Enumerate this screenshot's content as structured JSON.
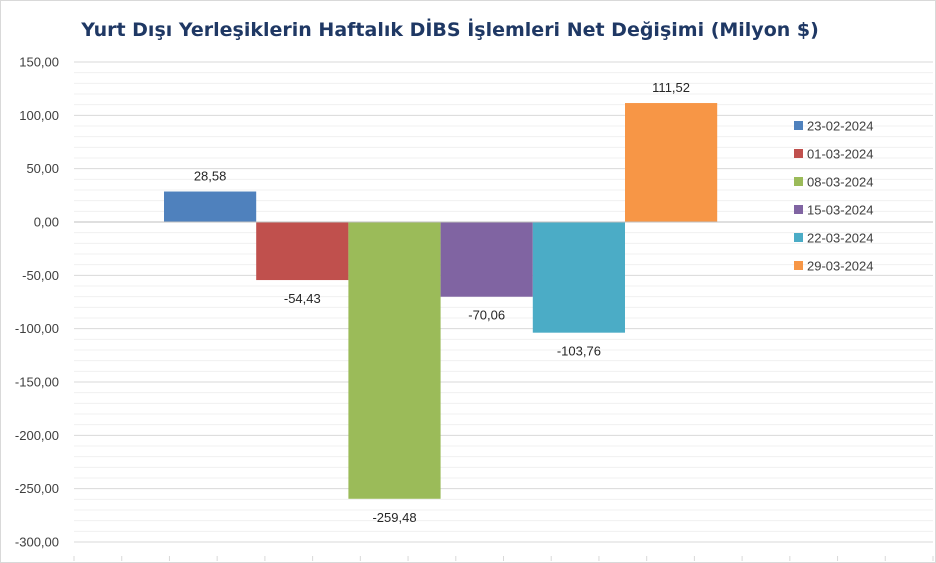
{
  "chart_data": {
    "type": "bar",
    "title": "Yurt Dışı Yerleşiklerin Haftalık DİBS İşlemleri Net Değişimi (Milyon $)",
    "xlabel": "",
    "ylabel": "",
    "ylim": [
      -300,
      150
    ],
    "yticks": [
      150,
      100,
      50,
      0,
      -50,
      -100,
      -150,
      -200,
      -250,
      -300
    ],
    "ytick_labels": [
      "150,00",
      "100,00",
      "50,00",
      "0,00",
      "-50,00",
      "-100,00",
      "-150,00",
      "-200,00",
      "-250,00",
      "-300,00"
    ],
    "grid": true,
    "legend_position": "right",
    "series": [
      {
        "name": "23-02-2024",
        "value": 28.58,
        "label": "28,58",
        "color": "#4f81bd"
      },
      {
        "name": "01-03-2024",
        "value": -54.43,
        "label": "-54,43",
        "color": "#c0504d"
      },
      {
        "name": "08-03-2024",
        "value": -259.48,
        "label": "-259,48",
        "color": "#9bbb59"
      },
      {
        "name": "15-03-2024",
        "value": -70.06,
        "label": "-70,06",
        "color": "#8064a2"
      },
      {
        "name": "22-03-2024",
        "value": -103.76,
        "label": "-103,76",
        "color": "#4bacc6"
      },
      {
        "name": "29-03-2024",
        "value": 111.52,
        "label": "111,52",
        "color": "#f79646"
      }
    ]
  }
}
